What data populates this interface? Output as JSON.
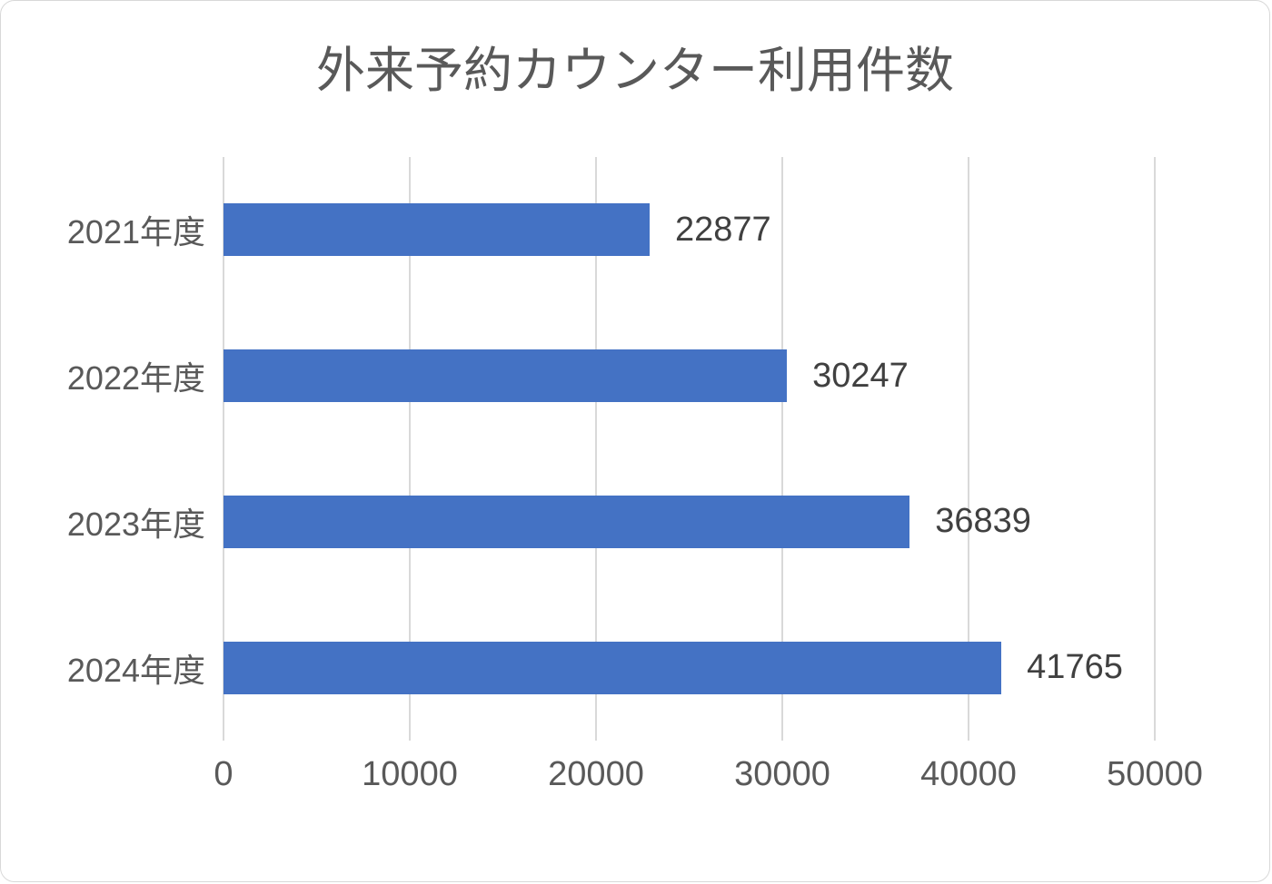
{
  "chart_data": {
    "type": "bar",
    "orientation": "horizontal",
    "title": "外来予約カウンター利用件数",
    "categories": [
      "2021年度",
      "2022年度",
      "2023年度",
      "2024年度"
    ],
    "values": [
      22877,
      30247,
      36839,
      41765
    ],
    "x_ticks": [
      0,
      10000,
      20000,
      30000,
      40000,
      50000
    ],
    "xlim": [
      0,
      50000
    ],
    "xlabel": "",
    "ylabel": "",
    "grid": "vertical-gridlines",
    "legend": "none",
    "data_labels": "outside-end",
    "colors": {
      "bar": "#4472c4",
      "title": "#595959",
      "axis_label": "#595959",
      "data_label": "#404040",
      "gridline": "#d9d9d9",
      "frame_border": "#d8d8d8",
      "background": "#ffffff"
    }
  }
}
